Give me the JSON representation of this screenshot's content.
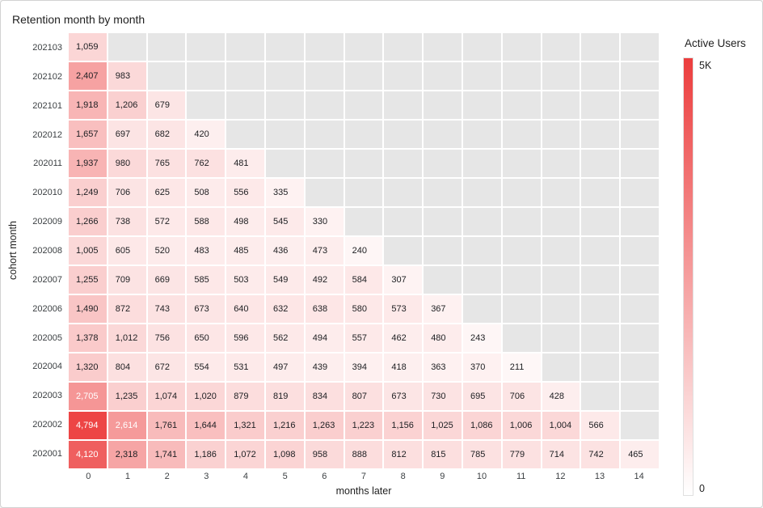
{
  "title": "Retention month by month",
  "axes": {
    "x_title": "months later",
    "y_title": "cohort month"
  },
  "legend": {
    "title": "Active Users",
    "max_label": "5K",
    "min_label": "0"
  },
  "colors": {
    "max_color_rgb": [
      236,
      61,
      61
    ],
    "min_color_rgb": [
      255,
      255,
      255
    ],
    "empty_cell": "#e6e6e6",
    "cell_text_dark": "#202124",
    "cell_text_light": "#ffffff"
  },
  "chart_data": {
    "type": "heatmap",
    "title": "Retention month by month",
    "xlabel": "months later",
    "ylabel": "cohort month",
    "legend_title": "Active Users",
    "x_ticks": [
      "0",
      "1",
      "2",
      "3",
      "4",
      "5",
      "6",
      "7",
      "8",
      "9",
      "10",
      "11",
      "12",
      "13",
      "14"
    ],
    "rows": [
      "202103",
      "202102",
      "202101",
      "202012",
      "202011",
      "202010",
      "202009",
      "202008",
      "202007",
      "202006",
      "202005",
      "202004",
      "202003",
      "202002",
      "202001"
    ],
    "values": [
      [
        1059
      ],
      [
        2407,
        983
      ],
      [
        1918,
        1206,
        679
      ],
      [
        1657,
        697,
        682,
        420
      ],
      [
        1937,
        980,
        765,
        762,
        481
      ],
      [
        1249,
        706,
        625,
        508,
        556,
        335
      ],
      [
        1266,
        738,
        572,
        588,
        498,
        545,
        330
      ],
      [
        1005,
        605,
        520,
        483,
        485,
        436,
        473,
        240
      ],
      [
        1255,
        709,
        669,
        585,
        503,
        549,
        492,
        584,
        307
      ],
      [
        1490,
        872,
        743,
        673,
        640,
        632,
        638,
        580,
        573,
        367
      ],
      [
        1378,
        1012,
        756,
        650,
        596,
        562,
        494,
        557,
        462,
        480,
        243
      ],
      [
        1320,
        804,
        672,
        554,
        531,
        497,
        439,
        394,
        418,
        363,
        370,
        211
      ],
      [
        2705,
        1235,
        1074,
        1020,
        879,
        819,
        834,
        807,
        673,
        730,
        695,
        706,
        428
      ],
      [
        4794,
        2614,
        1761,
        1644,
        1321,
        1216,
        1263,
        1223,
        1156,
        1025,
        1086,
        1006,
        1004,
        566
      ],
      [
        4120,
        2318,
        1741,
        1186,
        1072,
        1098,
        958,
        888,
        812,
        815,
        785,
        779,
        714,
        742,
        465
      ]
    ],
    "color_scale": {
      "min": 0,
      "max": 5000
    },
    "light_text_threshold": 2500,
    "grid": "white gaps between cells",
    "legend_position": "right gradient bar"
  }
}
